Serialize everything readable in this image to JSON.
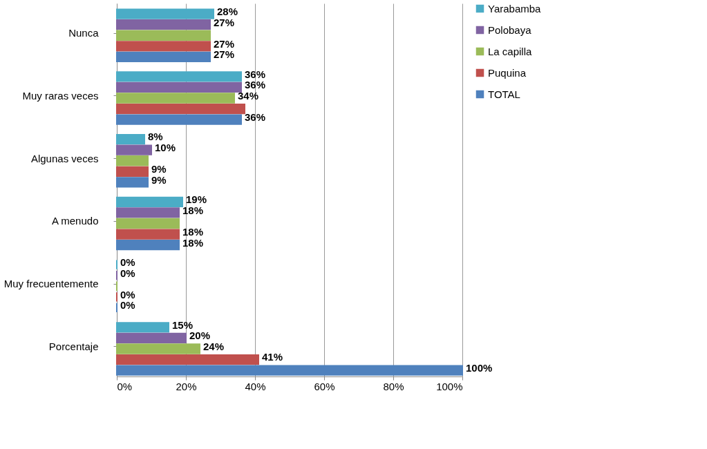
{
  "chart_data": {
    "type": "bar",
    "orientation": "horizontal",
    "categories": [
      "Nunca",
      "Muy raras veces",
      "Algunas  veces",
      "A menudo",
      "Muy frecuentemente",
      "Porcentaje"
    ],
    "series": [
      {
        "name": "Yarabamba",
        "color": "#4bacc6",
        "values": [
          28,
          36,
          8,
          19,
          0,
          15
        ],
        "value_labels": [
          "28%",
          "36%",
          "8%",
          "19%",
          "0%",
          "15%"
        ]
      },
      {
        "name": "Polobaya",
        "color": "#8064a2",
        "values": [
          27,
          36,
          10,
          18,
          0,
          20
        ],
        "value_labels": [
          "27%",
          "36%",
          "10%",
          "18%",
          "0%",
          "20%"
        ]
      },
      {
        "name": "La capilla",
        "color": "#9bbb59",
        "values": [
          27,
          34,
          9,
          18,
          0,
          24
        ],
        "value_labels": [
          null,
          "34%",
          null,
          null,
          null,
          "24%"
        ]
      },
      {
        "name": "Puquina",
        "color": "#c0504d",
        "values": [
          27,
          37,
          9,
          18,
          0,
          41
        ],
        "value_labels": [
          "27%",
          null,
          "9%",
          "18%",
          "0%",
          "41%"
        ]
      },
      {
        "name": "TOTAL",
        "color": "#4f81bd",
        "values": [
          27,
          36,
          9,
          18,
          0,
          100
        ],
        "value_labels": [
          "27%",
          "36%",
          "9%",
          "18%",
          "0%",
          "100%"
        ]
      }
    ],
    "xlim": [
      0,
      100
    ],
    "xticks": [
      {
        "value": 0,
        "label": "0%"
      },
      {
        "value": 20,
        "label": "20%"
      },
      {
        "value": 40,
        "label": "40%"
      },
      {
        "value": 60,
        "label": "60%"
      },
      {
        "value": 80,
        "label": "80%"
      },
      {
        "value": 100,
        "label": "100%"
      }
    ],
    "grid": "x",
    "legend": "right"
  }
}
